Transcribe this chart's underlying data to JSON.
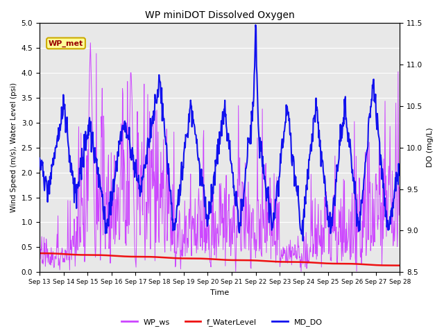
{
  "title": "WP miniDOT Dissolved Oxygen",
  "xlabel": "Time",
  "ylabel_left": "Wind Speed (m/s), Water Level (psi)",
  "ylabel_right": "DO (mg/L)",
  "ylim_left": [
    0.0,
    5.0
  ],
  "ylim_right": [
    8.5,
    11.5
  ],
  "yticks_left": [
    0.0,
    0.5,
    1.0,
    1.5,
    2.0,
    2.5,
    3.0,
    3.5,
    4.0,
    4.5,
    5.0
  ],
  "yticks_right": [
    8.5,
    9.0,
    9.5,
    10.0,
    10.5,
    11.0,
    11.5
  ],
  "xticklabels": [
    "Sep 13",
    "Sep 14",
    "Sep 15",
    "Sep 16",
    "Sep 17",
    "Sep 18",
    "Sep 19",
    "Sep 20",
    "Sep 21",
    "Sep 22",
    "Sep 23",
    "Sep 24",
    "Sep 25",
    "Sep 26",
    "Sep 27",
    "Sep 28"
  ],
  "legend_labels": [
    "WP_ws",
    "f_WaterLevel",
    "MD_DO"
  ],
  "color_ws": "#cc44ff",
  "color_wl": "#ee1111",
  "color_do": "#1111ee",
  "background_color": "#e8e8e8",
  "grid_color": "#ffffff",
  "wp_met_label": "WP_met",
  "wp_met_facecolor": "#ffff99",
  "wp_met_edgecolor": "#ccaa00",
  "wp_met_textcolor": "#990000",
  "n_points": 800
}
